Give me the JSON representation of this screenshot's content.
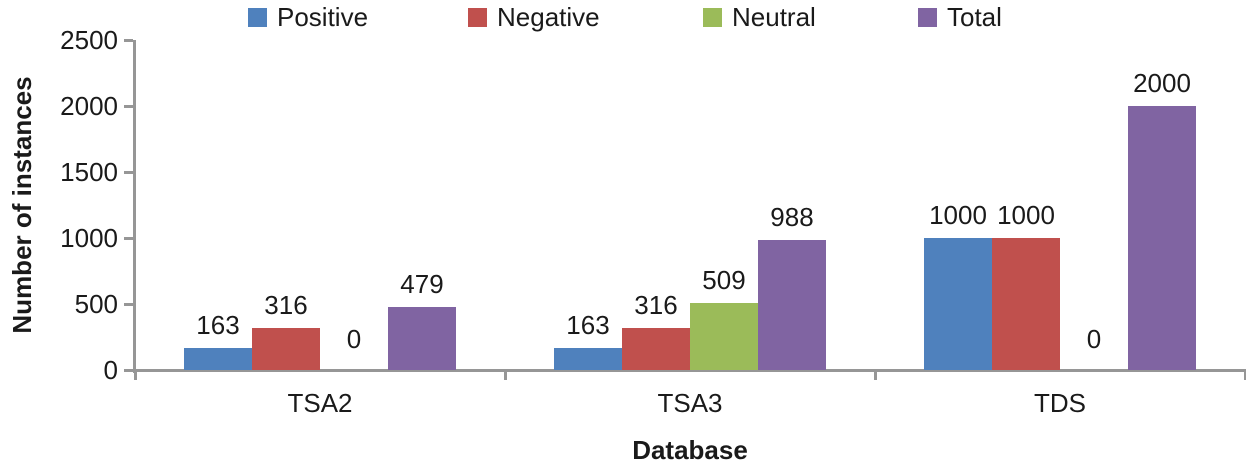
{
  "chart_data": {
    "type": "bar",
    "title": "",
    "categories": [
      "TSA2",
      "TSA3",
      "TDS"
    ],
    "series": [
      {
        "name": "Positive",
        "color": "#4F81BD",
        "values": [
          163,
          163,
          1000
        ]
      },
      {
        "name": "Negative",
        "color": "#C0504D",
        "values": [
          316,
          316,
          1000
        ]
      },
      {
        "name": "Neutral",
        "color": "#9BBB59",
        "values": [
          0,
          509,
          0
        ]
      },
      {
        "name": "Total",
        "color": "#8064A2",
        "values": [
          479,
          988,
          2000
        ]
      }
    ],
    "xlabel": "Database",
    "ylabel": "Number of instances",
    "ylim": [
      0,
      2500
    ],
    "yticks": [
      0,
      500,
      1000,
      1500,
      2000,
      2500
    ],
    "legend_position": "top",
    "legend_labels": [
      "Positive",
      "Negative",
      "Neutral",
      "Total"
    ],
    "grid": false,
    "data_labels": true,
    "data_label_values": {
      "TSA2": [
        163,
        316,
        0,
        479
      ],
      "TSA3": [
        163,
        316,
        509,
        988
      ],
      "TDS": [
        1000,
        1000,
        0,
        2000
      ]
    },
    "axis_color": "#969696",
    "text_color": "#1a1a1a"
  }
}
